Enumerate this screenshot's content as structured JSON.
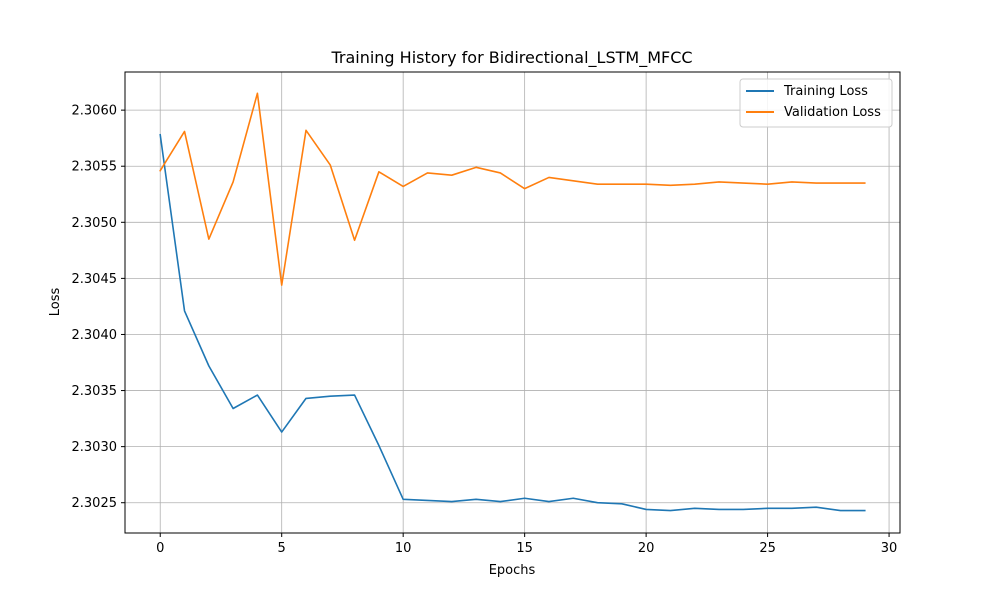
{
  "chart_data": {
    "type": "line",
    "title": "Training History for Bidirectional_LSTM_MFCC",
    "xlabel": "Epochs",
    "ylabel": "Loss",
    "xlim": [
      -1.45,
      30.45
    ],
    "ylim": [
      2.30223,
      2.30634
    ],
    "xticks": [
      0,
      5,
      10,
      15,
      20,
      25,
      30
    ],
    "xtick_labels": [
      "0",
      "5",
      "10",
      "15",
      "20",
      "25",
      "30"
    ],
    "yticks": [
      2.3025,
      2.303,
      2.3035,
      2.304,
      2.3045,
      2.305,
      2.3055,
      2.306
    ],
    "ytick_labels": [
      "2.3025",
      "2.3030",
      "2.3035",
      "2.3040",
      "2.3045",
      "2.3050",
      "2.3055",
      "2.3060"
    ],
    "grid": true,
    "legend_position": "top-right",
    "x": [
      0,
      1,
      2,
      3,
      4,
      5,
      6,
      7,
      8,
      9,
      10,
      11,
      12,
      13,
      14,
      15,
      16,
      17,
      18,
      19,
      20,
      21,
      22,
      23,
      24,
      25,
      26,
      27,
      28,
      29
    ],
    "series": [
      {
        "name": "Training Loss",
        "color": "#1f77b4",
        "values": [
          2.30578,
          2.30421,
          2.30372,
          2.30334,
          2.30346,
          2.30313,
          2.30343,
          2.30345,
          2.30346,
          2.30301,
          2.30253,
          2.30252,
          2.30251,
          2.30253,
          2.30251,
          2.30254,
          2.30251,
          2.30254,
          2.3025,
          2.30249,
          2.30244,
          2.30243,
          2.30245,
          2.30244,
          2.30244,
          2.30245,
          2.30245,
          2.30246,
          2.30243,
          2.30243
        ]
      },
      {
        "name": "Validation Loss",
        "color": "#ff7f0e",
        "values": [
          2.30546,
          2.30581,
          2.30485,
          2.30536,
          2.30615,
          2.30444,
          2.30582,
          2.30551,
          2.30484,
          2.30545,
          2.30532,
          2.30544,
          2.30542,
          2.30549,
          2.30544,
          2.3053,
          2.3054,
          2.30537,
          2.30534,
          2.30534,
          2.30534,
          2.30533,
          2.30534,
          2.30536,
          2.30535,
          2.30534,
          2.30536,
          2.30535,
          2.30535,
          2.30535
        ]
      }
    ]
  }
}
